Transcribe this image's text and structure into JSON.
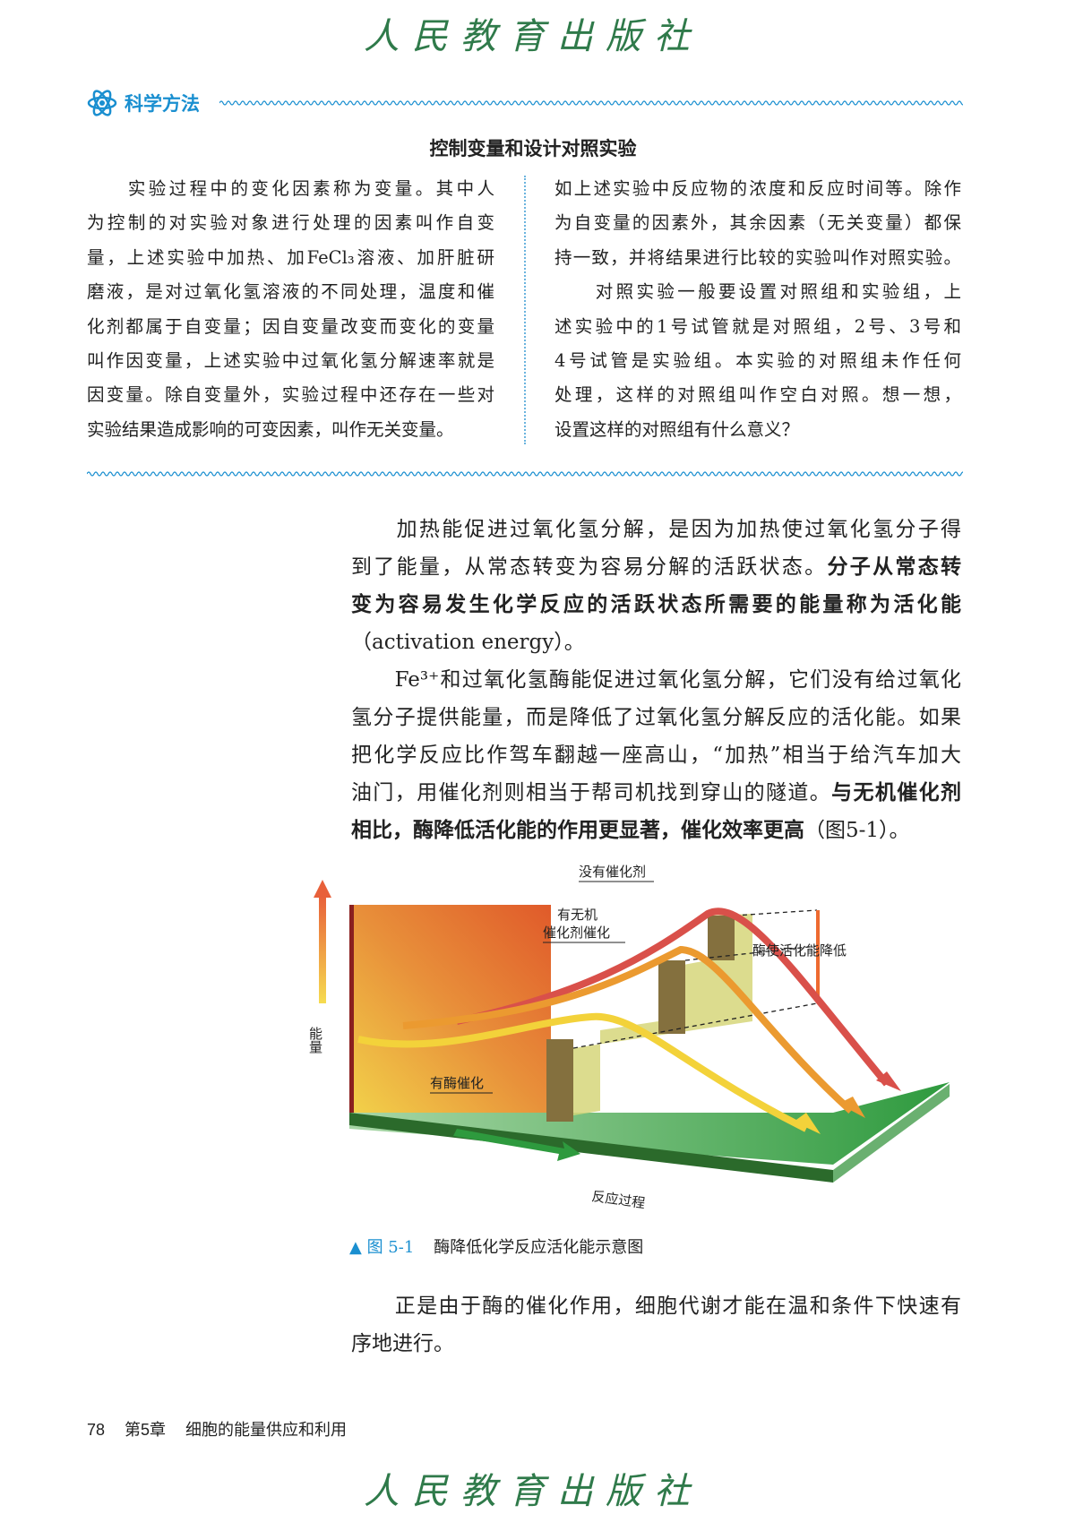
{
  "publisher_logo": "人民教育出版社",
  "science_box": {
    "section_label": "科学方法",
    "section_icon": "atom-icon",
    "accent_color": "#1a8fd0",
    "title": "控制变量和设计对照实验",
    "left_lines": [
      "　　实验过程中的变化因素称为变量。其中人",
      "为控制的对实验对象进行处理的因素叫作自变",
      "量，上述实验中加热、加FeCl₃溶液、加肝脏研",
      "磨液，是对过氧化氢溶液的不同处理，温度和催",
      "化剂都属于自变量；因自变量改变而变化的变量",
      "叫作因变量，上述实验中过氧化氢分解速率就是",
      "因变量。除自变量外，实验过程中还存在一些对",
      "实验结果造成影响的可变因素，叫作无关变量。"
    ],
    "right_lines": [
      "如上述实验中反应物的浓度和反应时间等。除作",
      "为自变量的因素外，其余因素（无关变量）都保",
      "持一致，并将结果进行比较的实验叫作对照实验。",
      "　　对照实验一般要设置对照组和实验组，上",
      "述实验中的1号试管就是对照组，2号、3号和",
      "4号试管是实验组。本实验的对照组未作任何",
      "处理，这样的对照组叫作空白对照。想一想，",
      "设置这样的对照组有什么意义？"
    ]
  },
  "body_lines": [
    [
      {
        "t": "　　加热能促进过氧化氢分解，是因为加热使过氧化氢分子得"
      }
    ],
    [
      {
        "t": "到了能量，从常态转变为容易分解的活跃状态。"
      },
      {
        "t": "分子从常态转",
        "b": true
      }
    ],
    [
      {
        "t": "变为容易发生化学反应的活跃状态所需要的能量称为活化能",
        "b": true
      }
    ],
    [
      {
        "t": "（activation  energy）。"
      }
    ],
    [
      {
        "t": "　　Fe³⁺和过氧化氢酶能促进过氧化氢分解，它们没有给过氧化"
      }
    ],
    [
      {
        "t": "氢分子提供能量，而是降低了过氧化氢分解反应的活化能。如果"
      }
    ],
    [
      {
        "t": "把化学反应比作驾车翻越一座高山，“加热”相当于给汽车加大"
      }
    ],
    [
      {
        "t": "油门，用催化剂则相当于帮司机找到穿山的隧道。"
      },
      {
        "t": "与无机催化剂",
        "b": true
      }
    ],
    [
      {
        "t": "相比，酶降低活化能的作用更显著，催化效率更高",
        "b": true
      },
      {
        "t": "（图5-1）。"
      }
    ]
  ],
  "figure": {
    "y_axis_label": "能量",
    "x_axis_label": "反应过程",
    "label_no_catalyst": "没有催化剂",
    "label_inorganic_1": "有无机",
    "label_inorganic_2": "催化剂催化",
    "label_enzyme": "有酶催化",
    "label_lowered": "酶使活化能降低",
    "caption_number": "▲ 图 5-1",
    "caption_text": "酶降低化学反应活化能示意图"
  },
  "closing_lines": [
    [
      {
        "t": "　　正是由于酶的催化作用，细胞代谢才能在温和条件下快速有"
      }
    ],
    [
      {
        "t": "序地进行。"
      }
    ]
  ],
  "footer": {
    "page_number": "78",
    "chapter": "第5章",
    "chapter_title": "细胞的能量供应和利用"
  }
}
